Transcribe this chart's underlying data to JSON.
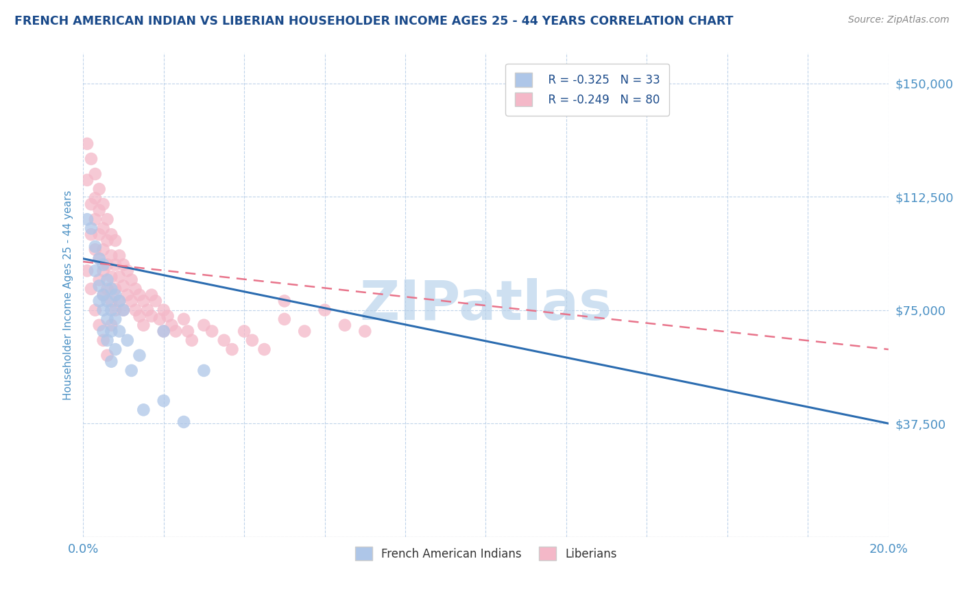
{
  "title": "FRENCH AMERICAN INDIAN VS LIBERIAN HOUSEHOLDER INCOME AGES 25 - 44 YEARS CORRELATION CHART",
  "source": "Source: ZipAtlas.com",
  "ylabel": "Householder Income Ages 25 - 44 years",
  "xlim": [
    0.0,
    0.2
  ],
  "ylim": [
    0,
    160000
  ],
  "yticks": [
    0,
    37500,
    75000,
    112500,
    150000
  ],
  "ytick_labels": [
    "",
    "$37,500",
    "$75,000",
    "$112,500",
    "$150,000"
  ],
  "xticks": [
    0.0,
    0.02,
    0.04,
    0.06,
    0.08,
    0.1,
    0.12,
    0.14,
    0.16,
    0.18,
    0.2
  ],
  "xtick_labels": [
    "0.0%",
    "",
    "",
    "",
    "",
    "",
    "",
    "",
    "",
    "",
    "20.0%"
  ],
  "legend_r_blue": "R = -0.325",
  "legend_n_blue": "N = 33",
  "legend_r_pink": "R = -0.249",
  "legend_n_pink": "N = 80",
  "label_blue": "French American Indians",
  "label_pink": "Liberians",
  "blue_color": "#aec6e8",
  "pink_color": "#f4b8c8",
  "blue_line_color": "#2b6cb0",
  "pink_line_color": "#e8738a",
  "title_color": "#1a4a8a",
  "axis_color": "#4393c3",
  "tick_color": "#4a90c4",
  "watermark_color": "#c6dbef",
  "background_color": "#ffffff",
  "blue_trend_x0": 0.0,
  "blue_trend_y0": 92000,
  "blue_trend_x1": 0.2,
  "blue_trend_y1": 37500,
  "pink_trend_x0": 0.0,
  "pink_trend_y0": 91000,
  "pink_trend_x1": 0.2,
  "pink_trend_y1": 62000,
  "blue_dots_x": [
    0.001,
    0.002,
    0.003,
    0.003,
    0.004,
    0.004,
    0.004,
    0.005,
    0.005,
    0.005,
    0.005,
    0.006,
    0.006,
    0.006,
    0.006,
    0.007,
    0.007,
    0.007,
    0.007,
    0.008,
    0.008,
    0.008,
    0.009,
    0.009,
    0.01,
    0.011,
    0.012,
    0.014,
    0.015,
    0.02,
    0.03,
    0.02,
    0.025
  ],
  "blue_dots_y": [
    105000,
    102000,
    96000,
    88000,
    92000,
    83000,
    78000,
    90000,
    80000,
    75000,
    68000,
    85000,
    78000,
    72000,
    65000,
    82000,
    75000,
    68000,
    58000,
    80000,
    72000,
    62000,
    78000,
    68000,
    75000,
    65000,
    55000,
    60000,
    42000,
    68000,
    55000,
    45000,
    38000
  ],
  "pink_dots_x": [
    0.001,
    0.001,
    0.002,
    0.002,
    0.002,
    0.003,
    0.003,
    0.003,
    0.003,
    0.004,
    0.004,
    0.004,
    0.004,
    0.004,
    0.005,
    0.005,
    0.005,
    0.005,
    0.005,
    0.006,
    0.006,
    0.006,
    0.006,
    0.007,
    0.007,
    0.007,
    0.007,
    0.007,
    0.008,
    0.008,
    0.008,
    0.008,
    0.009,
    0.009,
    0.009,
    0.01,
    0.01,
    0.01,
    0.011,
    0.011,
    0.012,
    0.012,
    0.013,
    0.013,
    0.014,
    0.014,
    0.015,
    0.015,
    0.016,
    0.017,
    0.017,
    0.018,
    0.019,
    0.02,
    0.02,
    0.021,
    0.022,
    0.023,
    0.025,
    0.026,
    0.027,
    0.03,
    0.032,
    0.035,
    0.037,
    0.04,
    0.042,
    0.045,
    0.05,
    0.055,
    0.06,
    0.065,
    0.07,
    0.001,
    0.002,
    0.003,
    0.004,
    0.005,
    0.006,
    0.05
  ],
  "pink_dots_y": [
    130000,
    118000,
    125000,
    110000,
    100000,
    120000,
    112000,
    105000,
    95000,
    115000,
    108000,
    100000,
    92000,
    85000,
    110000,
    102000,
    95000,
    88000,
    80000,
    105000,
    98000,
    90000,
    82000,
    100000,
    93000,
    86000,
    78000,
    70000,
    98000,
    90000,
    82000,
    75000,
    93000,
    86000,
    78000,
    90000,
    83000,
    75000,
    88000,
    80000,
    85000,
    78000,
    82000,
    75000,
    80000,
    73000,
    78000,
    70000,
    75000,
    80000,
    73000,
    78000,
    72000,
    75000,
    68000,
    73000,
    70000,
    68000,
    72000,
    68000,
    65000,
    70000,
    68000,
    65000,
    62000,
    68000,
    65000,
    62000,
    72000,
    68000,
    75000,
    70000,
    68000,
    88000,
    82000,
    75000,
    70000,
    65000,
    60000,
    78000
  ]
}
